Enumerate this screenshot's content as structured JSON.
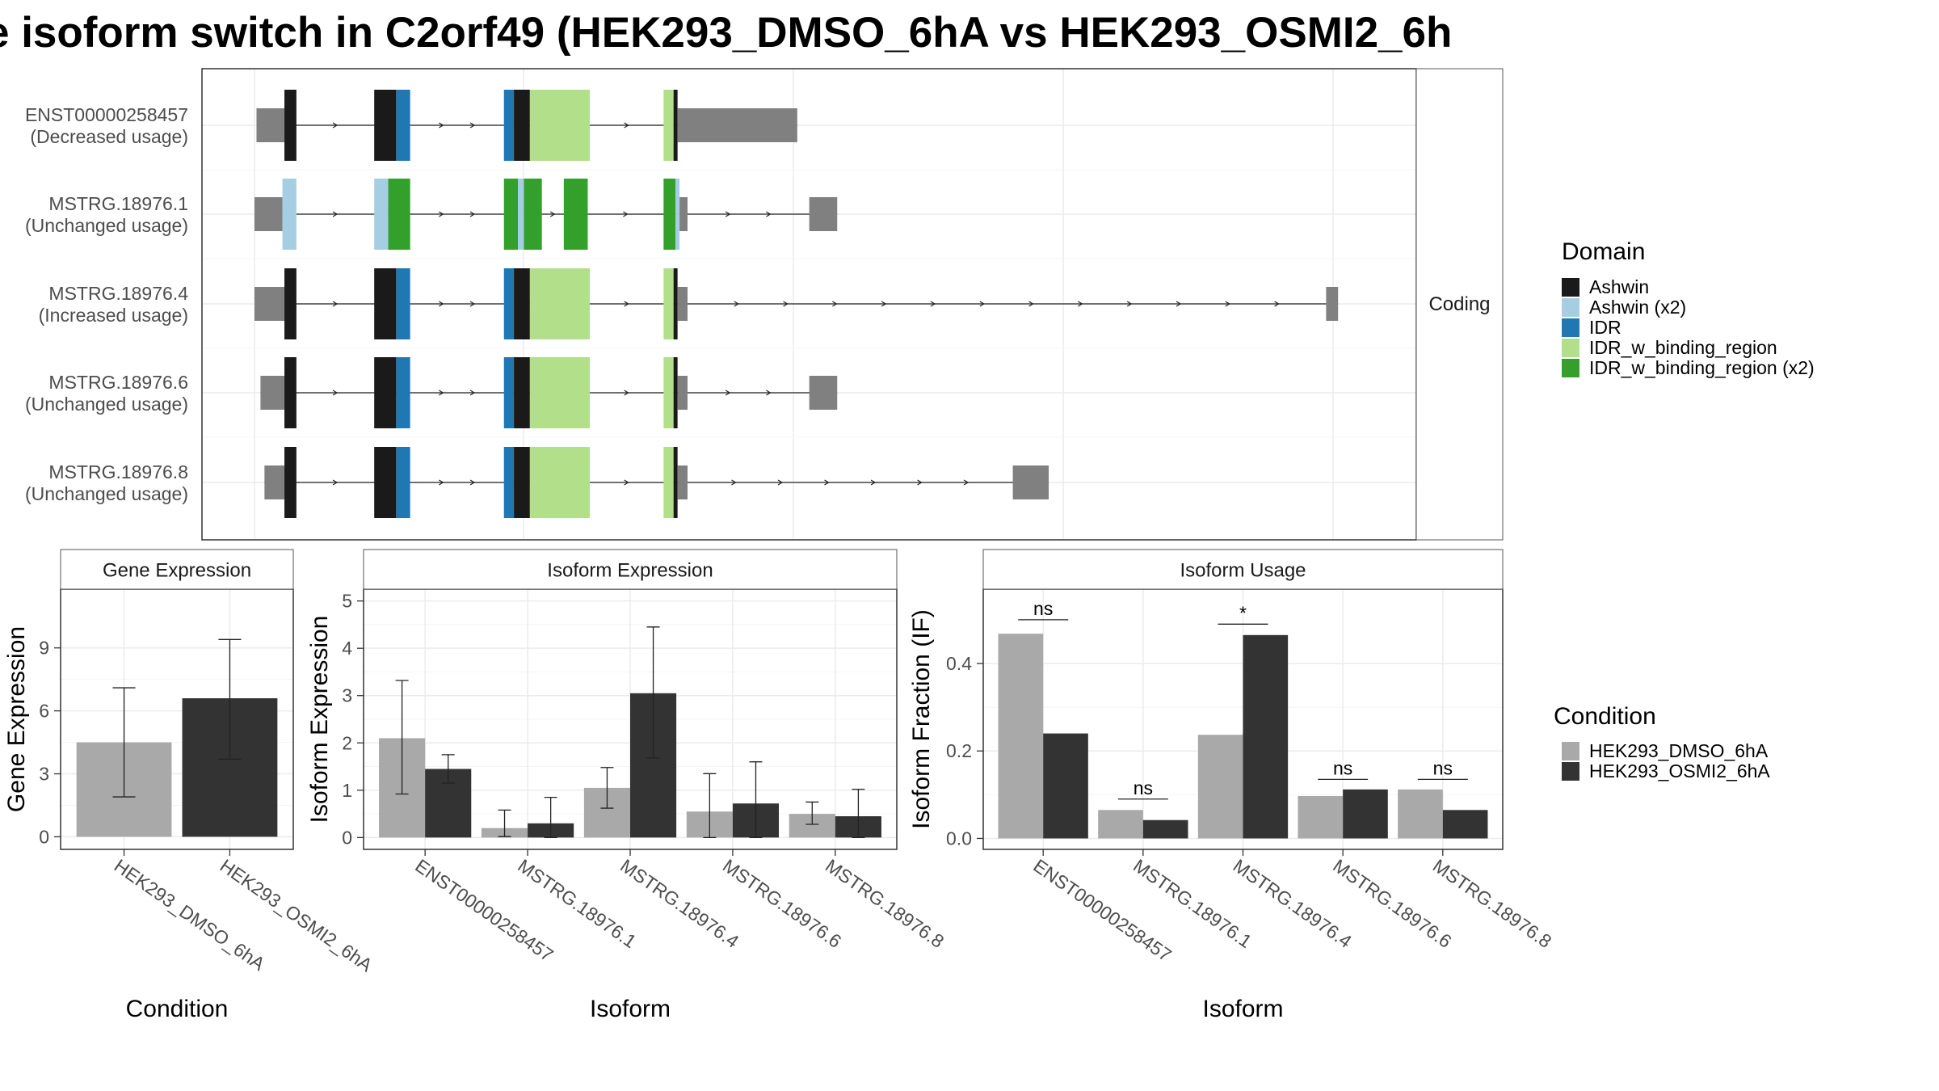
{
  "title": "e isoform switch in C2orf49 (HEK293_DMSO_6hA vs HEK293_OSMI2_6h",
  "colors": {
    "Ashwin": "#1a1a1a",
    "Ashwin (x2)": "#a6cee3",
    "IDR": "#1f78b4",
    "IDR_w_binding_region": "#b2df8a",
    "IDR_w_binding_region (x2)": "#33a02c",
    "utr": "#808080",
    "cond1": "#a9a9a9",
    "cond2": "#333333"
  },
  "structure": {
    "strip_label": "Coding",
    "legend_title": "Domain",
    "legend_items": [
      "Ashwin",
      "Ashwin (x2)",
      "IDR",
      "IDR_w_binding_region",
      "IDR_w_binding_region (x2)"
    ],
    "isoforms": [
      {
        "id": "ENST00000258457",
        "label": "(Decreased usage)",
        "exons": [
          [
            0.2,
            3.0,
            "utr"
          ],
          [
            3.0,
            4.2,
            "Ashwin"
          ],
          [
            12.0,
            14.2,
            "Ashwin"
          ],
          [
            14.2,
            15.6,
            "IDR"
          ],
          [
            25.0,
            26.0,
            "IDR"
          ],
          [
            26.0,
            27.6,
            "Ashwin"
          ],
          [
            27.6,
            33.6,
            "IDR_w_binding_region"
          ],
          [
            41.0,
            42.0,
            "IDR_w_binding_region"
          ],
          [
            42.0,
            42.4,
            "Ashwin"
          ],
          [
            42.4,
            54.4,
            "utr"
          ]
        ]
      },
      {
        "id": "MSTRG.18976.1",
        "label": "(Unchanged usage)",
        "exons": [
          [
            0.0,
            2.8,
            "utr"
          ],
          [
            2.8,
            4.2,
            "Ashwin (x2)"
          ],
          [
            12.0,
            13.4,
            "Ashwin (x2)"
          ],
          [
            13.4,
            15.6,
            "IDR_w_binding_region (x2)"
          ],
          [
            25.0,
            26.4,
            "IDR_w_binding_region (x2)"
          ],
          [
            26.4,
            27.0,
            "Ashwin (x2)"
          ],
          [
            27.0,
            28.8,
            "IDR_w_binding_region (x2)"
          ],
          [
            31.0,
            33.4,
            "IDR_w_binding_region (x2)"
          ],
          [
            41.0,
            42.2,
            "IDR_w_binding_region (x2)"
          ],
          [
            42.2,
            42.6,
            "Ashwin (x2)"
          ],
          [
            42.6,
            43.4,
            "utr"
          ],
          [
            55.6,
            58.4,
            "utr"
          ]
        ]
      },
      {
        "id": "MSTRG.18976.4",
        "label": "(Increased usage)",
        "exons": [
          [
            0.0,
            3.0,
            "utr"
          ],
          [
            3.0,
            4.2,
            "Ashwin"
          ],
          [
            12.0,
            14.2,
            "Ashwin"
          ],
          [
            14.2,
            15.6,
            "IDR"
          ],
          [
            25.0,
            26.0,
            "IDR"
          ],
          [
            26.0,
            27.6,
            "Ashwin"
          ],
          [
            27.6,
            33.6,
            "IDR_w_binding_region"
          ],
          [
            41.0,
            42.0,
            "IDR_w_binding_region"
          ],
          [
            42.0,
            42.4,
            "Ashwin"
          ],
          [
            42.4,
            43.4,
            "utr"
          ],
          [
            107.4,
            108.6,
            "utr"
          ]
        ]
      },
      {
        "id": "MSTRG.18976.6",
        "label": "(Unchanged usage)",
        "exons": [
          [
            0.6,
            3.0,
            "utr"
          ],
          [
            3.0,
            4.2,
            "Ashwin"
          ],
          [
            12.0,
            14.2,
            "Ashwin"
          ],
          [
            14.2,
            15.6,
            "IDR"
          ],
          [
            25.0,
            26.0,
            "IDR"
          ],
          [
            26.0,
            27.6,
            "Ashwin"
          ],
          [
            27.6,
            33.6,
            "IDR_w_binding_region"
          ],
          [
            41.0,
            42.0,
            "IDR_w_binding_region"
          ],
          [
            42.0,
            42.4,
            "Ashwin"
          ],
          [
            42.4,
            43.4,
            "utr"
          ],
          [
            55.6,
            58.4,
            "utr"
          ]
        ]
      },
      {
        "id": "MSTRG.18976.8",
        "label": "(Unchanged usage)",
        "exons": [
          [
            1.0,
            3.0,
            "utr"
          ],
          [
            3.0,
            4.2,
            "Ashwin"
          ],
          [
            12.0,
            14.2,
            "Ashwin"
          ],
          [
            14.2,
            15.6,
            "IDR"
          ],
          [
            25.0,
            26.0,
            "IDR"
          ],
          [
            26.0,
            27.6,
            "Ashwin"
          ],
          [
            27.6,
            33.6,
            "IDR_w_binding_region"
          ],
          [
            41.0,
            42.0,
            "IDR_w_binding_region"
          ],
          [
            42.0,
            42.4,
            "Ashwin"
          ],
          [
            42.4,
            43.4,
            "utr"
          ],
          [
            76.0,
            79.6,
            "utr"
          ]
        ]
      }
    ]
  },
  "chart_data": [
    {
      "type": "bar",
      "title": "Gene Expression",
      "xlabel": "Condition",
      "ylabel": "Gene Expression",
      "categories": [
        "HEK293_DMSO_6hA",
        "HEK293_OSMI2_6hA"
      ],
      "values": [
        4.5,
        6.6
      ],
      "error": [
        [
          1.9,
          7.1
        ],
        [
          3.7,
          9.4
        ]
      ],
      "ylim": [
        -0.6,
        11.8
      ],
      "yticks": [
        0,
        3,
        6,
        9
      ]
    },
    {
      "type": "bar",
      "title": "Isoform Expression",
      "xlabel": "Isoform",
      "ylabel": "Isoform Expression",
      "categories": [
        "ENST00000258457",
        "MSTRG.18976.1",
        "MSTRG.18976.4",
        "MSTRG.18976.6",
        "MSTRG.18976.8"
      ],
      "series": [
        {
          "name": "HEK293_DMSO_6hA",
          "values": [
            2.1,
            0.2,
            1.05,
            0.55,
            0.5
          ],
          "error": [
            [
              0.92,
              3.32
            ],
            [
              0.02,
              0.58
            ],
            [
              0.62,
              1.48
            ],
            [
              0.0,
              1.35
            ],
            [
              0.28,
              0.75
            ]
          ]
        },
        {
          "name": "HEK293_OSMI2_6hA",
          "values": [
            1.45,
            0.3,
            3.05,
            0.72,
            0.45
          ],
          "error": [
            [
              1.15,
              1.75
            ],
            [
              0.0,
              0.85
            ],
            [
              1.68,
              4.45
            ],
            [
              0.0,
              1.6
            ],
            [
              0.0,
              1.02
            ]
          ]
        }
      ],
      "ylim": [
        -0.25,
        5.25
      ],
      "yticks": [
        0,
        1,
        2,
        3,
        4,
        5
      ]
    },
    {
      "type": "bar",
      "title": "Isoform Usage",
      "xlabel": "Isoform",
      "ylabel": "Isoform Fraction (IF)",
      "categories": [
        "ENST00000258457",
        "MSTRG.18976.1",
        "MSTRG.18976.4",
        "MSTRG.18976.6",
        "MSTRG.18976.8"
      ],
      "series": [
        {
          "name": "HEK293_DMSO_6hA",
          "values": [
            0.468,
            0.065,
            0.237,
            0.097,
            0.112
          ]
        },
        {
          "name": "HEK293_OSMI2_6hA",
          "values": [
            0.24,
            0.042,
            0.465,
            0.112,
            0.065
          ]
        }
      ],
      "significance": [
        "ns",
        "ns",
        "*",
        "ns",
        "ns"
      ],
      "significance_y": [
        0.5,
        0.09,
        0.49,
        0.135,
        0.135
      ],
      "ylim": [
        -0.025,
        0.57
      ],
      "yticks": [
        0.0,
        0.2,
        0.4
      ],
      "ytick_labels": [
        "0.0",
        "0.2",
        "0.4"
      ]
    }
  ],
  "condition_legend": {
    "title": "Condition",
    "items": [
      "HEK293_DMSO_6hA",
      "HEK293_OSMI2_6hA"
    ]
  }
}
